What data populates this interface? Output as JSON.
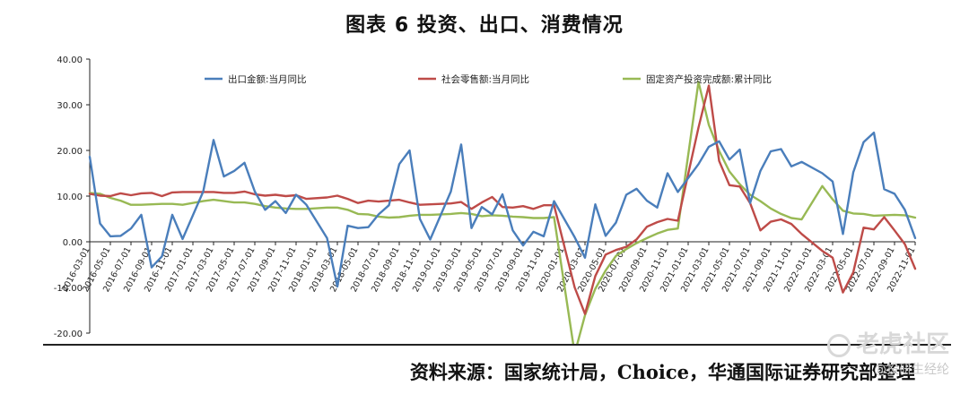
{
  "page": {
    "title": "图表 6 投资、出口、消费情况",
    "source": "资料来源：国家统计局，Choice，华通国际证券研究部整理",
    "watermark": "老虎社区",
    "watermark2": "@投研生经纶"
  },
  "colors": {
    "export": "#4a7ebb",
    "retail": "#be4b48",
    "fai": "#98b954",
    "axis": "#222222",
    "text": "#222222"
  },
  "chart_data": {
    "type": "line",
    "title": "",
    "xlabel": "",
    "ylabel": "",
    "ylim": [
      -20,
      40
    ],
    "yticks": [
      "40.00",
      "30.00",
      "20.00",
      "10.00",
      "0.00",
      "-10.00",
      "-20.00"
    ],
    "grid": false,
    "legend_position": "top",
    "x_labels": [
      "2016-03-01",
      "2016-05-01",
      "2016-07-01",
      "2016-09-01",
      "2016-11-01",
      "2017-01-01",
      "2017-03-01",
      "2017-05-01",
      "2017-07-01",
      "2017-09-01",
      "2017-11-01",
      "2018-01-01",
      "2018-03-01",
      "2018-05-01",
      "2018-07-01",
      "2018-09-01",
      "2018-11-01",
      "2019-01-01",
      "2019-03-01",
      "2019-05-01",
      "2019-07-01",
      "2019-09-01",
      "2019-11-01",
      "2020-01-01",
      "2020-03-01",
      "2020-05-01",
      "2020-07-01",
      "2020-09-01",
      "2020-11-01",
      "2021-01-01",
      "2021-03-01",
      "2021-05-01",
      "2021-07-01",
      "2021-09-01",
      "2021-11-01",
      "2022-01-01",
      "2022-03-01",
      "2022-05-01",
      "2022-07-01",
      "2022-09-01",
      "2022-11-01"
    ],
    "x_start": "2016-03",
    "x_end": "2022-11",
    "series": [
      {
        "name": "出口金额:当月同比",
        "color_key": "export",
        "points": [
          [
            "2016-03",
            18.6
          ],
          [
            "2016-04",
            4.0
          ],
          [
            "2016-05",
            1.2
          ],
          [
            "2016-06",
            1.3
          ],
          [
            "2016-07",
            2.9
          ],
          [
            "2016-08",
            5.9
          ],
          [
            "2016-09",
            -5.6
          ],
          [
            "2016-10",
            -3.2
          ],
          [
            "2016-11",
            5.9
          ],
          [
            "2016-12",
            0.6
          ],
          [
            "2017-02",
            11.0
          ],
          [
            "2017-03",
            22.3
          ],
          [
            "2017-04",
            14.3
          ],
          [
            "2017-05",
            15.5
          ],
          [
            "2017-06",
            17.3
          ],
          [
            "2017-07",
            11.0
          ],
          [
            "2017-08",
            7.0
          ],
          [
            "2017-09",
            8.9
          ],
          [
            "2017-10",
            6.3
          ],
          [
            "2017-11",
            10.3
          ],
          [
            "2017-12",
            8.1
          ],
          [
            "2018-02",
            0.8
          ],
          [
            "2018-03",
            -9.8
          ],
          [
            "2018-04",
            3.5
          ],
          [
            "2018-05",
            3.0
          ],
          [
            "2018-06",
            3.2
          ],
          [
            "2018-07",
            6.0
          ],
          [
            "2018-08",
            8.0
          ],
          [
            "2018-09",
            17.0
          ],
          [
            "2018-10",
            20.0
          ],
          [
            "2018-11",
            5.0
          ],
          [
            "2018-12",
            0.5
          ],
          [
            "2019-02",
            11.0
          ],
          [
            "2019-03",
            21.3
          ],
          [
            "2019-04",
            3.0
          ],
          [
            "2019-05",
            7.6
          ],
          [
            "2019-06",
            6.0
          ],
          [
            "2019-07",
            10.4
          ],
          [
            "2019-08",
            2.5
          ],
          [
            "2019-09",
            -0.8
          ],
          [
            "2019-10",
            2.2
          ],
          [
            "2019-11",
            1.2
          ],
          [
            "2019-12",
            8.9
          ],
          [
            "2020-02",
            1.0
          ],
          [
            "2020-03",
            -3.5
          ],
          [
            "2020-04",
            8.2
          ],
          [
            "2020-05",
            1.3
          ],
          [
            "2020-06",
            4.2
          ],
          [
            "2020-07",
            10.3
          ],
          [
            "2020-08",
            11.6
          ],
          [
            "2020-09",
            9.0
          ],
          [
            "2020-10",
            7.5
          ],
          [
            "2020-11",
            15.0
          ],
          [
            "2020-12",
            10.9
          ],
          [
            "2021-02",
            17.0
          ],
          [
            "2021-03",
            20.8
          ],
          [
            "2021-04",
            22.0
          ],
          [
            "2021-05",
            18.0
          ],
          [
            "2021-06",
            20.2
          ],
          [
            "2021-07",
            8.5
          ],
          [
            "2021-08",
            15.5
          ],
          [
            "2021-09",
            19.8
          ],
          [
            "2021-10",
            20.3
          ],
          [
            "2021-11",
            16.5
          ],
          [
            "2021-12",
            17.5
          ],
          [
            "2022-02",
            15.0
          ],
          [
            "2022-03",
            13.2
          ],
          [
            "2022-04",
            1.7
          ],
          [
            "2022-05",
            15.2
          ],
          [
            "2022-06",
            21.8
          ],
          [
            "2022-07",
            23.9
          ],
          [
            "2022-08",
            11.5
          ],
          [
            "2022-09",
            10.5
          ],
          [
            "2022-10",
            7.0
          ],
          [
            "2022-11",
            0.8
          ]
        ]
      },
      {
        "name": "社会零售额:当月同比",
        "color_key": "retail",
        "points": [
          [
            "2016-03",
            10.5
          ],
          [
            "2016-04",
            10.1
          ],
          [
            "2016-05",
            10.0
          ],
          [
            "2016-06",
            10.6
          ],
          [
            "2016-07",
            10.2
          ],
          [
            "2016-08",
            10.6
          ],
          [
            "2016-09",
            10.7
          ],
          [
            "2016-10",
            10.0
          ],
          [
            "2016-11",
            10.8
          ],
          [
            "2016-12",
            10.9
          ],
          [
            "2017-02",
            10.9
          ],
          [
            "2017-03",
            10.9
          ],
          [
            "2017-04",
            10.7
          ],
          [
            "2017-05",
            10.7
          ],
          [
            "2017-06",
            11.0
          ],
          [
            "2017-07",
            10.4
          ],
          [
            "2017-08",
            10.1
          ],
          [
            "2017-09",
            10.3
          ],
          [
            "2017-10",
            10.0
          ],
          [
            "2017-11",
            10.2
          ],
          [
            "2017-12",
            9.4
          ],
          [
            "2018-02",
            9.7
          ],
          [
            "2018-03",
            10.1
          ],
          [
            "2018-04",
            9.4
          ],
          [
            "2018-05",
            8.5
          ],
          [
            "2018-06",
            9.0
          ],
          [
            "2018-07",
            8.8
          ],
          [
            "2018-08",
            9.0
          ],
          [
            "2018-09",
            9.2
          ],
          [
            "2018-10",
            8.6
          ],
          [
            "2018-11",
            8.1
          ],
          [
            "2018-12",
            8.2
          ],
          [
            "2019-02",
            8.4
          ],
          [
            "2019-03",
            8.7
          ],
          [
            "2019-04",
            7.2
          ],
          [
            "2019-05",
            8.6
          ],
          [
            "2019-06",
            9.8
          ],
          [
            "2019-07",
            7.6
          ],
          [
            "2019-08",
            7.5
          ],
          [
            "2019-09",
            7.8
          ],
          [
            "2019-10",
            7.2
          ],
          [
            "2019-11",
            8.0
          ],
          [
            "2019-12",
            8.0
          ],
          [
            "2020-02",
            -10.0
          ],
          [
            "2020-03",
            -15.8
          ],
          [
            "2020-04",
            -7.5
          ],
          [
            "2020-05",
            -2.8
          ],
          [
            "2020-06",
            -1.8
          ],
          [
            "2020-07",
            -1.1
          ],
          [
            "2020-08",
            0.5
          ],
          [
            "2020-09",
            3.3
          ],
          [
            "2020-10",
            4.3
          ],
          [
            "2020-11",
            5.0
          ],
          [
            "2020-12",
            4.6
          ],
          [
            "2021-02",
            25.0
          ],
          [
            "2021-03",
            34.2
          ],
          [
            "2021-04",
            17.7
          ],
          [
            "2021-05",
            12.4
          ],
          [
            "2021-06",
            12.1
          ],
          [
            "2021-07",
            8.5
          ],
          [
            "2021-08",
            2.5
          ],
          [
            "2021-09",
            4.4
          ],
          [
            "2021-10",
            4.9
          ],
          [
            "2021-11",
            3.9
          ],
          [
            "2021-12",
            1.7
          ],
          [
            "2022-02",
            -2.0
          ],
          [
            "2022-03",
            -3.5
          ],
          [
            "2022-04",
            -11.1
          ],
          [
            "2022-05",
            -6.7
          ],
          [
            "2022-06",
            3.1
          ],
          [
            "2022-07",
            2.7
          ],
          [
            "2022-08",
            5.4
          ],
          [
            "2022-09",
            2.5
          ],
          [
            "2022-10",
            -0.5
          ],
          [
            "2022-11",
            -5.9
          ]
        ]
      },
      {
        "name": "固定资产投资完成额:累计同比",
        "color_key": "fai",
        "points": [
          [
            "2016-03",
            10.7
          ],
          [
            "2016-04",
            10.5
          ],
          [
            "2016-05",
            9.6
          ],
          [
            "2016-06",
            9.0
          ],
          [
            "2016-07",
            8.1
          ],
          [
            "2016-08",
            8.1
          ],
          [
            "2016-09",
            8.2
          ],
          [
            "2016-10",
            8.3
          ],
          [
            "2016-11",
            8.3
          ],
          [
            "2016-12",
            8.1
          ],
          [
            "2017-02",
            8.9
          ],
          [
            "2017-03",
            9.2
          ],
          [
            "2017-04",
            8.9
          ],
          [
            "2017-05",
            8.6
          ],
          [
            "2017-06",
            8.6
          ],
          [
            "2017-07",
            8.3
          ],
          [
            "2017-08",
            7.8
          ],
          [
            "2017-09",
            7.5
          ],
          [
            "2017-10",
            7.3
          ],
          [
            "2017-11",
            7.2
          ],
          [
            "2017-12",
            7.2
          ],
          [
            "2018-02",
            7.5
          ],
          [
            "2018-03",
            7.5
          ],
          [
            "2018-04",
            7.0
          ],
          [
            "2018-05",
            6.1
          ],
          [
            "2018-06",
            6.0
          ],
          [
            "2018-07",
            5.5
          ],
          [
            "2018-08",
            5.3
          ],
          [
            "2018-09",
            5.4
          ],
          [
            "2018-10",
            5.7
          ],
          [
            "2018-11",
            5.9
          ],
          [
            "2018-12",
            5.9
          ],
          [
            "2019-02",
            6.1
          ],
          [
            "2019-03",
            6.3
          ],
          [
            "2019-04",
            6.1
          ],
          [
            "2019-05",
            5.6
          ],
          [
            "2019-06",
            5.8
          ],
          [
            "2019-07",
            5.7
          ],
          [
            "2019-08",
            5.5
          ],
          [
            "2019-09",
            5.4
          ],
          [
            "2019-10",
            5.2
          ],
          [
            "2019-11",
            5.2
          ],
          [
            "2019-12",
            5.4
          ],
          [
            "2020-02",
            -24.5
          ],
          [
            "2020-03",
            -16.1
          ],
          [
            "2020-04",
            -10.3
          ],
          [
            "2020-05",
            -6.3
          ],
          [
            "2020-06",
            -3.1
          ],
          [
            "2020-07",
            -1.6
          ],
          [
            "2020-08",
            -0.3
          ],
          [
            "2020-09",
            0.8
          ],
          [
            "2020-10",
            1.8
          ],
          [
            "2020-11",
            2.6
          ],
          [
            "2020-12",
            2.9
          ],
          [
            "2021-02",
            35.0
          ],
          [
            "2021-03",
            25.6
          ],
          [
            "2021-04",
            19.9
          ],
          [
            "2021-05",
            15.4
          ],
          [
            "2021-06",
            12.6
          ],
          [
            "2021-07",
            10.3
          ],
          [
            "2021-08",
            8.9
          ],
          [
            "2021-09",
            7.3
          ],
          [
            "2021-10",
            6.1
          ],
          [
            "2021-11",
            5.2
          ],
          [
            "2021-12",
            4.9
          ],
          [
            "2022-02",
            12.2
          ],
          [
            "2022-03",
            9.3
          ],
          [
            "2022-04",
            6.8
          ],
          [
            "2022-05",
            6.2
          ],
          [
            "2022-06",
            6.1
          ],
          [
            "2022-07",
            5.7
          ],
          [
            "2022-08",
            5.8
          ],
          [
            "2022-09",
            5.9
          ],
          [
            "2022-10",
            5.8
          ],
          [
            "2022-11",
            5.3
          ]
        ]
      }
    ]
  }
}
